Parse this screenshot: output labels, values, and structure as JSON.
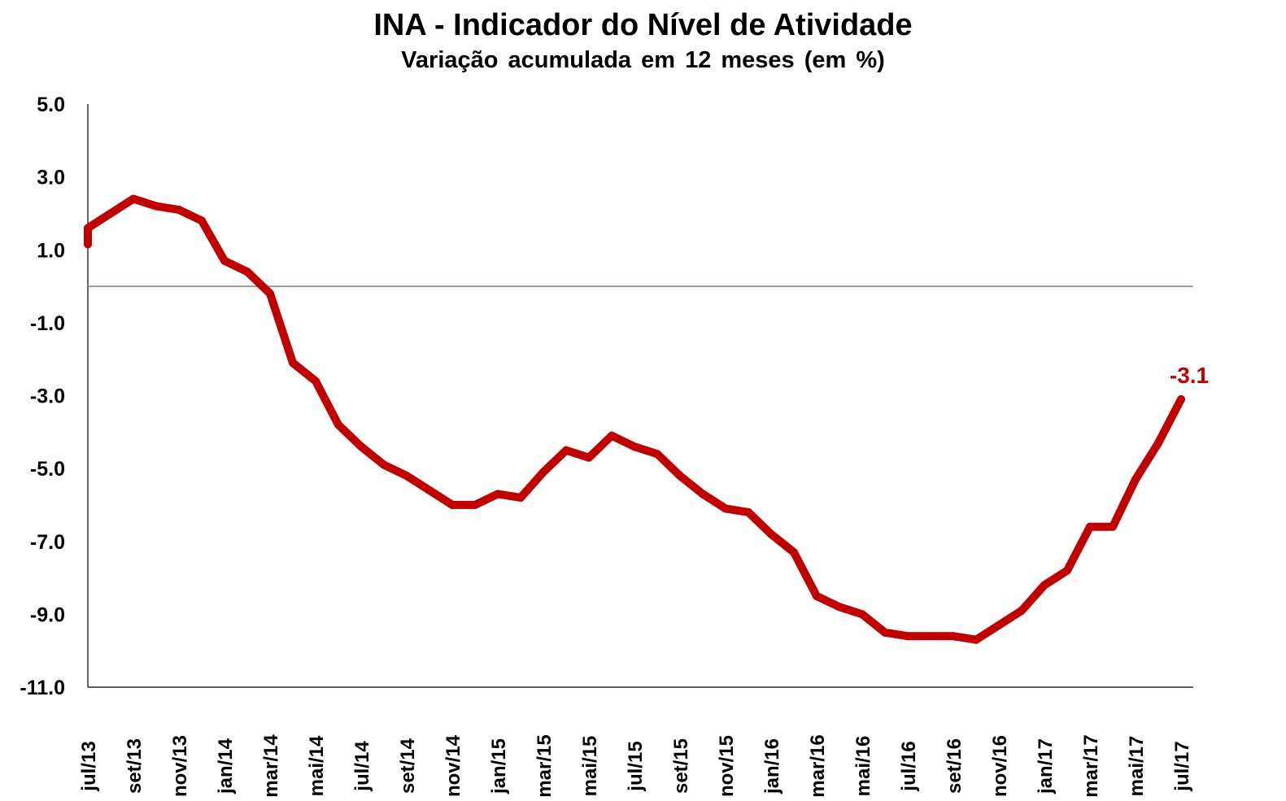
{
  "chart_data": {
    "type": "line",
    "title": "INA - Indicador do Nível de Atividade",
    "subtitle": "Variação acumulada em 12 meses (em %)",
    "xlabel": "",
    "ylabel": "",
    "ylim": [
      -11.0,
      5.0
    ],
    "yticks": [
      "5.0",
      "3.0",
      "1.0",
      "-1.0",
      "-3.0",
      "-5.0",
      "-7.0",
      "-9.0",
      "-11.0"
    ],
    "ytick_values": [
      5,
      3,
      1,
      -1,
      -3,
      -5,
      -7,
      -9,
      -11
    ],
    "x": [
      "jul/13",
      "ago/13",
      "set/13",
      "out/13",
      "nov/13",
      "dez/13",
      "jan/14",
      "fev/14",
      "mar/14",
      "abr/14",
      "mai/14",
      "jun/14",
      "jul/14",
      "ago/14",
      "set/14",
      "out/14",
      "nov/14",
      "dez/14",
      "jan/15",
      "fev/15",
      "mar/15",
      "abr/15",
      "mai/15",
      "jun/15",
      "jul/15",
      "ago/15",
      "set/15",
      "out/15",
      "nov/15",
      "dez/15",
      "jan/16",
      "fev/16",
      "mar/16",
      "abr/16",
      "mai/16",
      "jun/16",
      "jul/16",
      "ago/16",
      "set/16",
      "out/16",
      "nov/16",
      "dez/16",
      "jan/17",
      "fev/17",
      "mar/17",
      "abr/17",
      "mai/17",
      "jun/17",
      "jul/17"
    ],
    "xtick_labels": [
      "jul/13",
      "set/13",
      "nov/13",
      "jan/14",
      "mar/14",
      "mai/14",
      "jul/14",
      "set/14",
      "nov/14",
      "jan/15",
      "mar/15",
      "mai/15",
      "jul/15",
      "set/15",
      "nov/15",
      "jan/16",
      "mar/16",
      "mai/16",
      "jul/16",
      "set/16",
      "nov/16",
      "jan/17",
      "mar/17",
      "mai/17",
      "jul/17"
    ],
    "series": [
      {
        "values": [
          1.6,
          2.0,
          2.4,
          2.2,
          2.1,
          1.8,
          0.7,
          0.4,
          -0.2,
          -2.1,
          -2.6,
          -3.8,
          -4.4,
          -4.9,
          -5.2,
          -5.6,
          -6.0,
          -6.0,
          -5.7,
          -5.8,
          -5.1,
          -4.5,
          -4.7,
          -4.1,
          -4.4,
          -4.6,
          -5.2,
          -5.7,
          -6.1,
          -6.2,
          -6.8,
          -7.3,
          -8.5,
          -8.8,
          -9.0,
          -9.5,
          -9.6,
          -9.6,
          -9.6,
          -9.7,
          -9.3,
          -8.9,
          -8.2,
          -7.8,
          -6.6,
          -6.6,
          -5.3,
          -4.3,
          -3.1
        ]
      }
    ],
    "last_label": "-3.1",
    "colors": {
      "line": "#c00000",
      "axis": "#000000",
      "zero_line": "#808080"
    },
    "grid": false,
    "legend": "none"
  }
}
